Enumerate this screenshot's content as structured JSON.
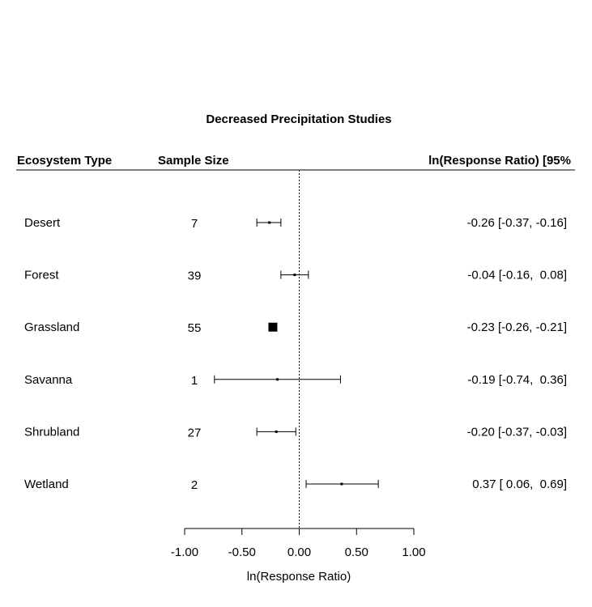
{
  "chart_data": {
    "type": "forest",
    "title": "Decreased Precipitation Studies",
    "headers": {
      "ecosystem": "Ecosystem Type",
      "sample_size": "Sample Size",
      "effect": "ln(Response Ratio) [95%"
    },
    "xlabel": "ln(Response Ratio)",
    "xlim": [
      -1.0,
      1.0
    ],
    "x_ticks": [
      "-1.00",
      "-0.50",
      "0.00",
      "0.50",
      "1.00"
    ],
    "reference_line": 0,
    "rows": [
      {
        "ecosystem": "Desert",
        "n": "7",
        "estimate": -0.26,
        "lower": -0.37,
        "upper": -0.16,
        "ci_label": "-0.26 [-0.37, -0.16]"
      },
      {
        "ecosystem": "Forest",
        "n": "39",
        "estimate": -0.04,
        "lower": -0.16,
        "upper": 0.08,
        "ci_label": "-0.04 [-0.16,  0.08]"
      },
      {
        "ecosystem": "Grassland",
        "n": "55",
        "estimate": -0.23,
        "lower": -0.26,
        "upper": -0.21,
        "ci_label": "-0.23 [-0.26, -0.21]"
      },
      {
        "ecosystem": "Savanna",
        "n": "1",
        "estimate": -0.19,
        "lower": -0.74,
        "upper": 0.36,
        "ci_label": "-0.19 [-0.74,  0.36]"
      },
      {
        "ecosystem": "Shrubland",
        "n": "27",
        "estimate": -0.2,
        "lower": -0.37,
        "upper": -0.03,
        "ci_label": "-0.20 [-0.37, -0.03]"
      },
      {
        "ecosystem": "Wetland",
        "n": "2",
        "estimate": 0.37,
        "lower": 0.06,
        "upper": 0.69,
        "ci_label": " 0.37 [ 0.06,  0.69]"
      }
    ]
  }
}
